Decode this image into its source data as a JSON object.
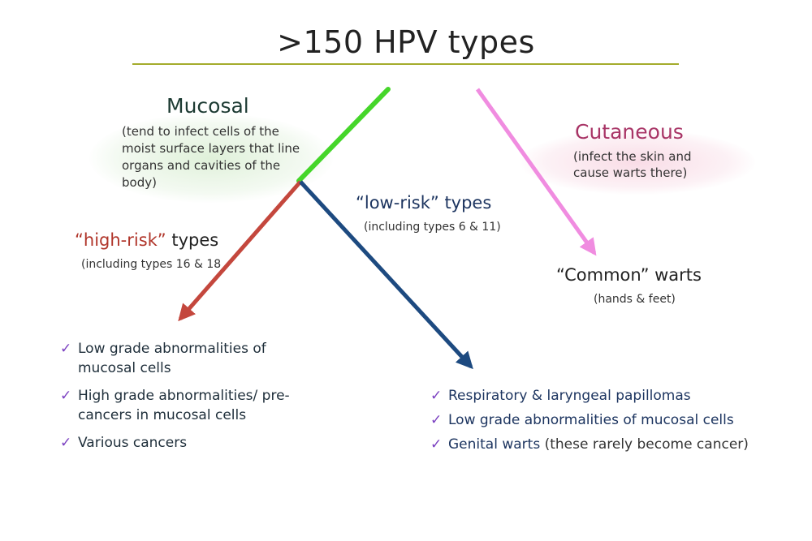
{
  "title": ">150 HPV types",
  "mucosal": {
    "heading": "Mucosal",
    "description": "(tend to infect cells of the moist surface layers that line organs and cavities of the body)"
  },
  "cutaneous": {
    "heading": "Cutaneous",
    "description": "(infect the skin and cause warts there)"
  },
  "high_risk": {
    "heading_quoted": "“high-risk”",
    "heading_rest": " types",
    "subtext": "(including types 16 & 18",
    "items": [
      "Low grade abnormalities of mucosal cells",
      "High grade abnormalities/ pre-cancers in mucosal cells",
      "Various cancers"
    ]
  },
  "low_risk": {
    "heading": "“low-risk” types",
    "subtext": "(including types 6 & 11)",
    "items": [
      {
        "text": "Respiratory & laryngeal papillomas",
        "note": ""
      },
      {
        "text": "Low grade abnormalities of mucosal cells",
        "note": ""
      },
      {
        "text": "Genital warts",
        "note": " (these rarely become cancer)"
      }
    ]
  },
  "common_warts": {
    "heading": "“Common” warts",
    "subtext": "(hands & feet)"
  },
  "check_glyph": "✓",
  "colors": {
    "title_rule": "#a4ac2c",
    "mucosal_arrow": "#45d62a",
    "high_risk_arrow": "#c4473d",
    "low_risk_arrow": "#1d4a80",
    "cutaneous_arrow": "#f08ce0",
    "mucosal_text": "#1d3b33",
    "cutaneous_text": "#a83466",
    "check": "#7a3fc0"
  }
}
